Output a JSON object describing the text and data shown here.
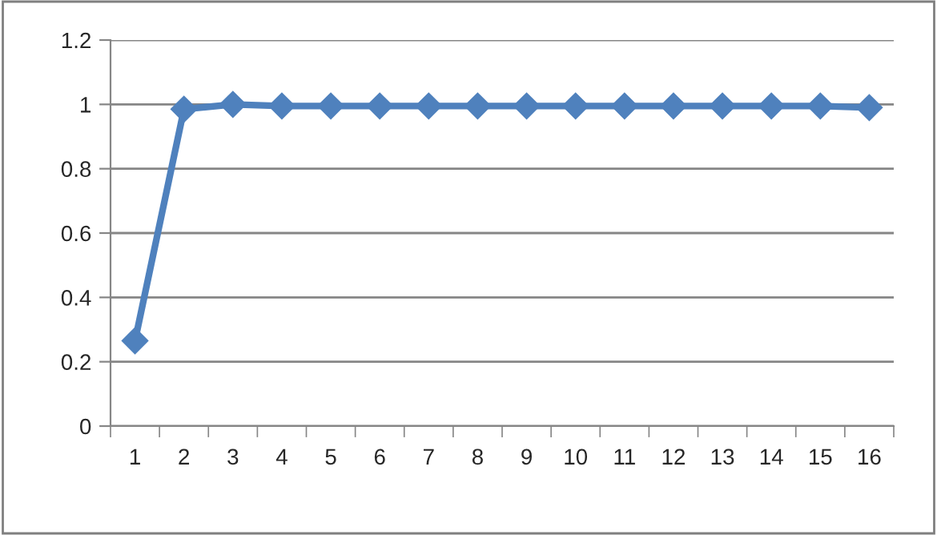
{
  "chart_data": {
    "type": "line",
    "categories": [
      "1",
      "2",
      "3",
      "4",
      "5",
      "6",
      "7",
      "8",
      "9",
      "10",
      "11",
      "12",
      "13",
      "14",
      "15",
      "16"
    ],
    "series": [
      {
        "color": "#4f81bd",
        "values": [
          0.265,
          0.985,
          1.0,
          0.995,
          0.995,
          0.995,
          0.995,
          0.995,
          0.995,
          0.995,
          0.995,
          0.995,
          0.995,
          0.995,
          0.995,
          0.99
        ]
      }
    ],
    "ylim": [
      0,
      1.2
    ],
    "yticks": [
      0,
      0.2,
      0.4,
      0.6,
      0.8,
      1,
      1.2
    ],
    "grid": "y",
    "marker": "diamond",
    "line_style": "solid",
    "legend": false
  }
}
